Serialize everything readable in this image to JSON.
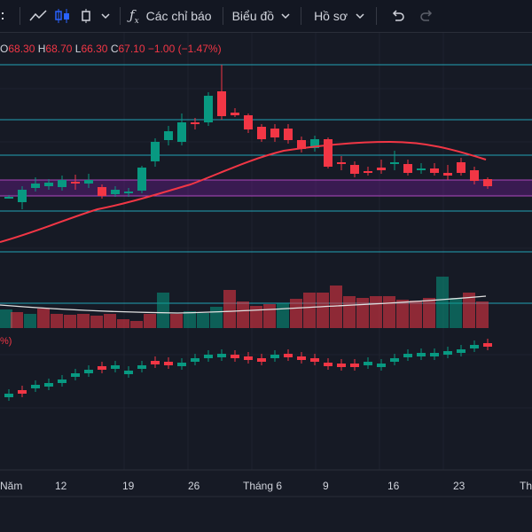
{
  "toolbar": {
    "indicators_label": "Các chỉ báo",
    "chart_label": "Biểu đồ",
    "profile_label": "Hồ sơ"
  },
  "legend": {
    "open_label": "O",
    "open": "68.30",
    "high_label": "H",
    "high": "68.70",
    "low_label": "L",
    "low": "66.30",
    "close_label": "C",
    "close": "67.10",
    "change": "−1.00 (−1.47%)"
  },
  "lower_pane": {
    "label": "%)"
  },
  "time_axis": [
    "Năm",
    "12",
    "19",
    "26",
    "Tháng 6",
    "9",
    "16",
    "23",
    "Th"
  ],
  "colors": {
    "up": "#089981",
    "down": "#f23645",
    "ma": "#f23645",
    "hline": "#26c6da",
    "zone": "#7b1fa2"
  }
}
